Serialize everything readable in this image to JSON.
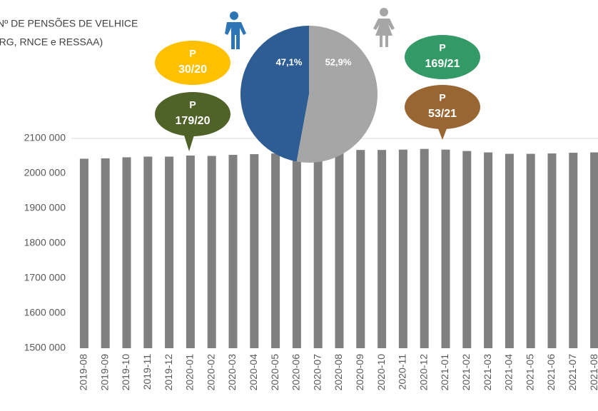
{
  "chart_data": {
    "type": "bar",
    "title": "Nº DE PENSÕES DE VELHICE",
    "subtitle": "(RG, RNCE e RESSAA)",
    "categories": [
      "2019-08",
      "2019-09",
      "2019-10",
      "2019-11",
      "2019-12",
      "2020-01",
      "2020-02",
      "2020-03",
      "2020-04",
      "2020-05",
      "2020-06",
      "2020-07",
      "2020-08",
      "2020-09",
      "2020-10",
      "2020-11",
      "2020-12",
      "2021-01",
      "2021-02",
      "2021-03",
      "2021-04",
      "2021-05",
      "2021-06",
      "2021-07",
      "2021-08"
    ],
    "values": [
      2042000,
      2043000,
      2046000,
      2048000,
      2048000,
      2051000,
      2050000,
      2053000,
      2055000,
      2057000,
      2061000,
      2065000,
      2065000,
      2067000,
      2067000,
      2068000,
      2070000,
      2068000,
      2064000,
      2060000,
      2056000,
      2056000,
      2057000,
      2059000,
      2060000
    ],
    "color": "#808080",
    "ylim": [
      1500000,
      2100000
    ],
    "yticks": [
      {
        "value": 1500000,
        "label": "1500 000"
      },
      {
        "value": 1600000,
        "label": "1600 000"
      },
      {
        "value": 1700000,
        "label": "1700 000"
      },
      {
        "value": 1800000,
        "label": "1800 000"
      },
      {
        "value": 1900000,
        "label": "1900 000"
      },
      {
        "value": 2000000,
        "label": "2000 000"
      },
      {
        "value": 2100000,
        "label": "2100 000"
      }
    ],
    "grid": false,
    "pie": {
      "type": "pie",
      "values": [
        47.1,
        52.9
      ],
      "value_labels": [
        "47,1%",
        "52,9%"
      ],
      "colors": [
        "#2e5d93",
        "#a6a6a6"
      ]
    },
    "annotations": [
      {
        "label": "P",
        "text": "30/20",
        "color": "#ffc000"
      },
      {
        "label": "P",
        "text": "179/20",
        "color": "#4f6228"
      },
      {
        "label": "P",
        "text": "169/21",
        "color": "#339966"
      },
      {
        "label": "P",
        "text": "53/21",
        "color": "#996633"
      }
    ]
  }
}
